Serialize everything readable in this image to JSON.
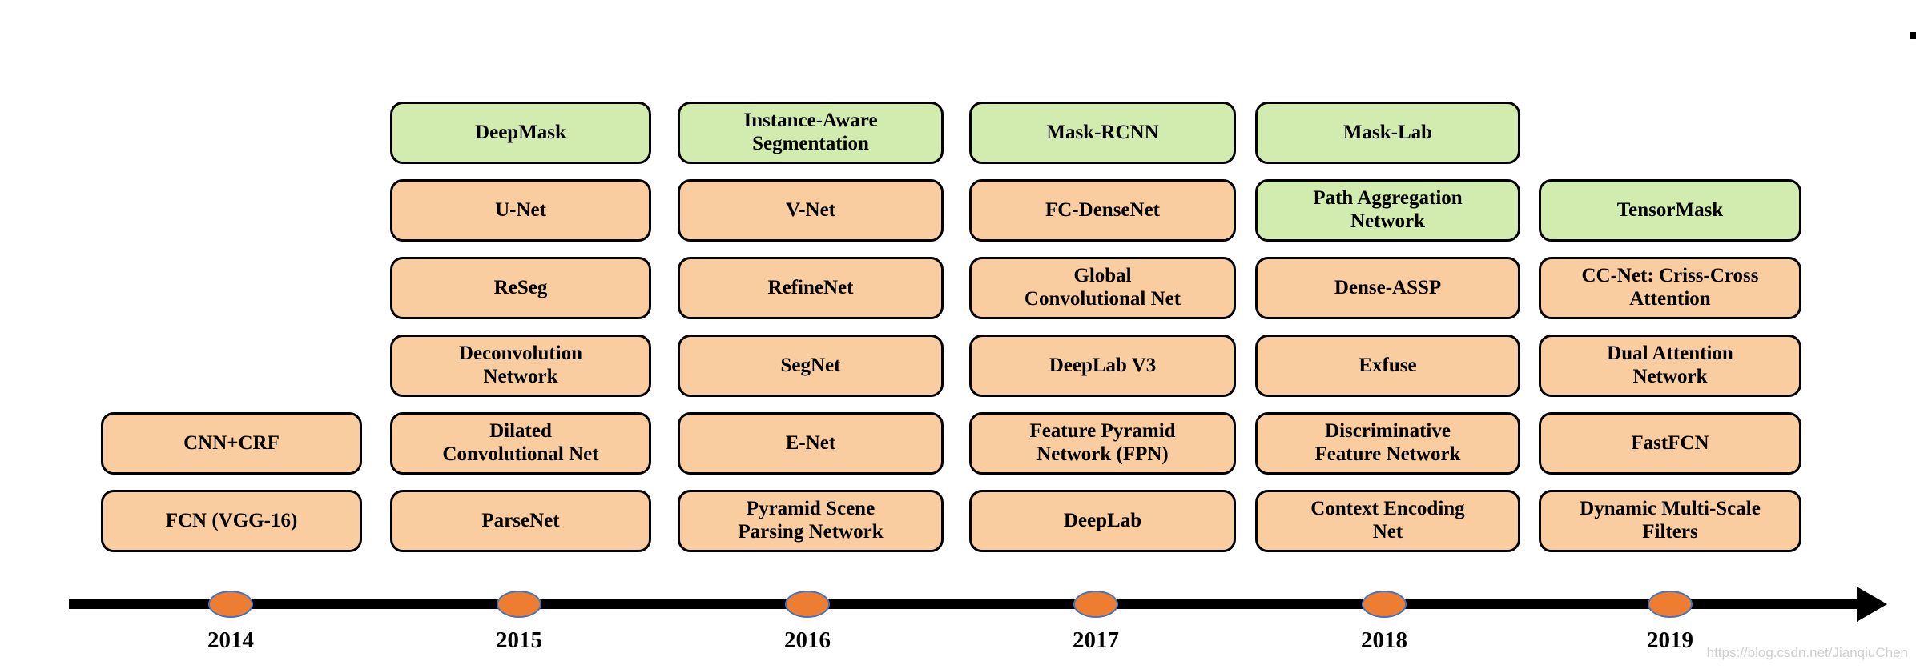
{
  "colors": {
    "semantic_box_fill": "#FACDA0",
    "instance_box_fill": "#D2ECB0",
    "box_border": "#000000",
    "timeline_line": "#000000",
    "marker_fill": "#ED7D31",
    "marker_stroke": "#4472C4",
    "watermark_text": "#CFCFCF"
  },
  "watermark": {
    "text": "https://blog.csdn.net/JianqiuChen"
  },
  "columns": [
    {
      "year": "2014",
      "boxes": [
        {
          "label": "CNN+CRF",
          "category": "orange"
        },
        {
          "label": "FCN (VGG-16)",
          "category": "orange"
        }
      ]
    },
    {
      "year": "2015",
      "boxes": [
        {
          "label": "DeepMask",
          "category": "green"
        },
        {
          "label": "U-Net",
          "category": "orange"
        },
        {
          "label": "ReSeg",
          "category": "orange"
        },
        {
          "label": "Deconvolution\nNetwork",
          "category": "orange"
        },
        {
          "label": "Dilated\nConvolutional Net",
          "category": "orange"
        },
        {
          "label": "ParseNet",
          "category": "orange"
        }
      ]
    },
    {
      "year": "2016",
      "boxes": [
        {
          "label": "Instance-Aware\nSegmentation",
          "category": "green"
        },
        {
          "label": "V-Net",
          "category": "orange"
        },
        {
          "label": "RefineNet",
          "category": "orange"
        },
        {
          "label": "SegNet",
          "category": "orange"
        },
        {
          "label": "E-Net",
          "category": "orange"
        },
        {
          "label": "Pyramid Scene\nParsing Network",
          "category": "orange"
        }
      ]
    },
    {
      "year": "2017",
      "boxes": [
        {
          "label": "Mask-RCNN",
          "category": "green"
        },
        {
          "label": "FC-DenseNet",
          "category": "orange"
        },
        {
          "label": "Global\nConvolutional Net",
          "category": "orange"
        },
        {
          "label": "DeepLab V3",
          "category": "orange"
        },
        {
          "label": "Feature Pyramid\nNetwork (FPN)",
          "category": "orange"
        },
        {
          "label": "DeepLab",
          "category": "orange"
        }
      ]
    },
    {
      "year": "2018",
      "boxes": [
        {
          "label": "Mask-Lab",
          "category": "green"
        },
        {
          "label": "Path Aggregation\nNetwork",
          "category": "green"
        },
        {
          "label": "Dense-ASSP",
          "category": "orange"
        },
        {
          "label": "Exfuse",
          "category": "orange"
        },
        {
          "label": "Discriminative\nFeature Network",
          "category": "orange"
        },
        {
          "label": "Context Encoding\nNet",
          "category": "orange"
        }
      ]
    },
    {
      "year": "2019",
      "boxes": [
        {
          "label": "TensorMask",
          "category": "green"
        },
        {
          "label": "CC-Net: Criss-Cross\nAttention",
          "category": "orange"
        },
        {
          "label": "Dual Attention\nNetwork",
          "category": "orange"
        },
        {
          "label": "FastFCN",
          "category": "orange"
        },
        {
          "label": "Dynamic Multi-Scale\nFilters",
          "category": "orange"
        }
      ]
    }
  ]
}
